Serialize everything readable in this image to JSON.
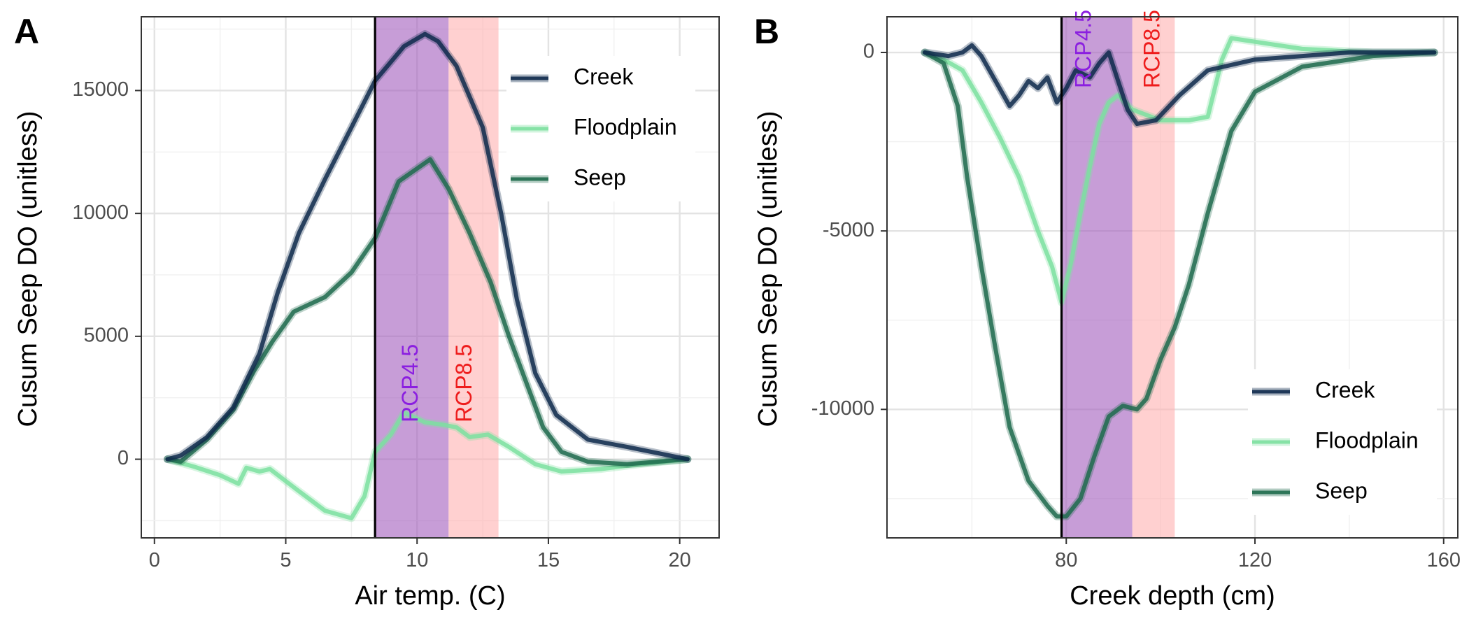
{
  "chart_data": [
    {
      "panel_label": "A",
      "type": "line",
      "xlabel": "Air temp. (C)",
      "ylabel": "Cusum Seep DO (unitless)",
      "xlim": [
        -0.5,
        21.5
      ],
      "ylim": [
        -3200,
        18000
      ],
      "x_ticks": [
        0,
        5,
        10,
        15,
        20
      ],
      "y_ticks": [
        0,
        5000,
        10000,
        15000
      ],
      "y_tick_labels": [
        "0",
        "5000",
        "10000",
        "15000"
      ],
      "grid": true,
      "legend_position": "top-right",
      "vline": 8.4,
      "bands": [
        {
          "label": "RCP4.5",
          "from": 8.4,
          "to": 11.2,
          "color": "#a15bbd",
          "text_color": "#8b1fe0",
          "label_x": 9.8,
          "label_y": 1500
        },
        {
          "label": "RCP8.5",
          "from": 11.2,
          "to": 13.1,
          "color": "#ffb0b0",
          "text_color": "#ee1c1c",
          "label_x": 11.85,
          "label_y": 1500
        }
      ],
      "series": [
        {
          "name": "Creek",
          "color": "#0f2a4c",
          "points": [
            [
              0.5,
              0
            ],
            [
              1,
              150
            ],
            [
              2,
              900
            ],
            [
              3,
              2100
            ],
            [
              4,
              4300
            ],
            [
              4.7,
              6800
            ],
            [
              5.5,
              9200
            ],
            [
              6.5,
              11400
            ],
            [
              7.5,
              13500
            ],
            [
              8.4,
              15400
            ],
            [
              9.5,
              16800
            ],
            [
              10.3,
              17300
            ],
            [
              10.8,
              17000
            ],
            [
              11.5,
              16000
            ],
            [
              12.5,
              13500
            ],
            [
              13.2,
              10000
            ],
            [
              13.8,
              6500
            ],
            [
              14.5,
              3500
            ],
            [
              15.3,
              1800
            ],
            [
              16.5,
              800
            ],
            [
              18,
              500
            ],
            [
              20.3,
              0
            ]
          ]
        },
        {
          "name": "Floodplain",
          "color": "#7de0a0",
          "points": [
            [
              0.5,
              0
            ],
            [
              1.5,
              -300
            ],
            [
              2.5,
              -650
            ],
            [
              3.2,
              -1000
            ],
            [
              3.5,
              -350
            ],
            [
              4,
              -500
            ],
            [
              4.4,
              -400
            ],
            [
              5.5,
              -1300
            ],
            [
              6.5,
              -2100
            ],
            [
              7.5,
              -2400
            ],
            [
              8,
              -1500
            ],
            [
              8.4,
              300
            ],
            [
              9,
              1000
            ],
            [
              9.5,
              1900
            ],
            [
              10.3,
              1500
            ],
            [
              11,
              1400
            ],
            [
              11.5,
              1300
            ],
            [
              12,
              900
            ],
            [
              12.7,
              1000
            ],
            [
              13.5,
              500
            ],
            [
              14.5,
              -200
            ],
            [
              15.5,
              -500
            ],
            [
              17,
              -400
            ],
            [
              18.5,
              -200
            ],
            [
              20.3,
              0
            ]
          ]
        },
        {
          "name": "Seep",
          "color": "#1f6b4d",
          "points": [
            [
              0.5,
              0
            ],
            [
              1,
              -100
            ],
            [
              2,
              800
            ],
            [
              3,
              2000
            ],
            [
              3.8,
              3600
            ],
            [
              4.5,
              4800
            ],
            [
              5.3,
              6000
            ],
            [
              6.5,
              6600
            ],
            [
              7.5,
              7600
            ],
            [
              8.4,
              9000
            ],
            [
              9.3,
              11300
            ],
            [
              10.5,
              12200
            ],
            [
              11.2,
              11000
            ],
            [
              12,
              9200
            ],
            [
              12.8,
              7200
            ],
            [
              13.5,
              5000
            ],
            [
              14.2,
              3000
            ],
            [
              14.8,
              1300
            ],
            [
              15.5,
              300
            ],
            [
              16.5,
              -100
            ],
            [
              18,
              -200
            ],
            [
              20.3,
              0
            ]
          ]
        }
      ]
    },
    {
      "panel_label": "B",
      "type": "line",
      "xlabel": "Creek depth (cm)",
      "ylabel": "Cusum Seep DO (unitless)",
      "xlim": [
        42,
        163
      ],
      "ylim": [
        -13600,
        1000
      ],
      "x_ticks": [
        80,
        120,
        160
      ],
      "y_ticks": [
        0,
        -5000,
        -10000
      ],
      "y_tick_labels": [
        "0",
        "-5000",
        "-10000"
      ],
      "grid": true,
      "legend_position": "bottom-right",
      "vline": 79,
      "bands": [
        {
          "label": "RCP4.5",
          "from": 79,
          "to": 94,
          "color": "#a15bbd",
          "text_color": "#8b1fe0",
          "label_x": 84,
          "label_y": -1000
        },
        {
          "label": "RCP8.5",
          "from": 94,
          "to": 103,
          "color": "#ffb0b0",
          "text_color": "#ee1c1c",
          "label_x": 98.5,
          "label_y": -1000
        }
      ],
      "series": [
        {
          "name": "Creek",
          "color": "#0f2a4c",
          "points": [
            [
              50,
              0
            ],
            [
              55,
              -100
            ],
            [
              58,
              0
            ],
            [
              60,
              200
            ],
            [
              62,
              -100
            ],
            [
              65,
              -800
            ],
            [
              68,
              -1500
            ],
            [
              70,
              -1200
            ],
            [
              72,
              -800
            ],
            [
              74,
              -1000
            ],
            [
              76,
              -700
            ],
            [
              78,
              -1400
            ],
            [
              80,
              -1000
            ],
            [
              82,
              -500
            ],
            [
              85,
              -700
            ],
            [
              87,
              -300
            ],
            [
              89,
              0
            ],
            [
              91,
              -800
            ],
            [
              93,
              -1600
            ],
            [
              95,
              -2000
            ],
            [
              99,
              -1900
            ],
            [
              104,
              -1200
            ],
            [
              110,
              -500
            ],
            [
              120,
              -200
            ],
            [
              140,
              0
            ],
            [
              158,
              0
            ]
          ]
        },
        {
          "name": "Floodplain",
          "color": "#7de0a0",
          "points": [
            [
              50,
              0
            ],
            [
              54,
              -200
            ],
            [
              58,
              -500
            ],
            [
              62,
              -1400
            ],
            [
              66,
              -2400
            ],
            [
              70,
              -3500
            ],
            [
              74,
              -5000
            ],
            [
              77,
              -6000
            ],
            [
              79,
              -7000
            ],
            [
              81,
              -5900
            ],
            [
              83,
              -4500
            ],
            [
              85,
              -3200
            ],
            [
              87,
              -2000
            ],
            [
              89,
              -1400
            ],
            [
              91,
              -1200
            ],
            [
              94,
              -1600
            ],
            [
              100,
              -1900
            ],
            [
              106,
              -1900
            ],
            [
              110,
              -1800
            ],
            [
              113,
              -200
            ],
            [
              115,
              400
            ],
            [
              120,
              300
            ],
            [
              130,
              100
            ],
            [
              145,
              0
            ],
            [
              158,
              0
            ]
          ]
        },
        {
          "name": "Seep",
          "color": "#1f6b4d",
          "points": [
            [
              50,
              0
            ],
            [
              54,
              -300
            ],
            [
              57,
              -1500
            ],
            [
              59,
              -3500
            ],
            [
              62,
              -6000
            ],
            [
              65,
              -8300
            ],
            [
              68,
              -10500
            ],
            [
              72,
              -12000
            ],
            [
              76,
              -12700
            ],
            [
              78,
              -13000
            ],
            [
              80,
              -13000
            ],
            [
              83,
              -12500
            ],
            [
              86,
              -11300
            ],
            [
              89,
              -10200
            ],
            [
              92,
              -9900
            ],
            [
              95,
              -10000
            ],
            [
              97,
              -9700
            ],
            [
              100,
              -8600
            ],
            [
              103,
              -7700
            ],
            [
              106,
              -6500
            ],
            [
              110,
              -4500
            ],
            [
              115,
              -2200
            ],
            [
              120,
              -1100
            ],
            [
              130,
              -400
            ],
            [
              145,
              -100
            ],
            [
              158,
              0
            ]
          ]
        }
      ]
    }
  ]
}
